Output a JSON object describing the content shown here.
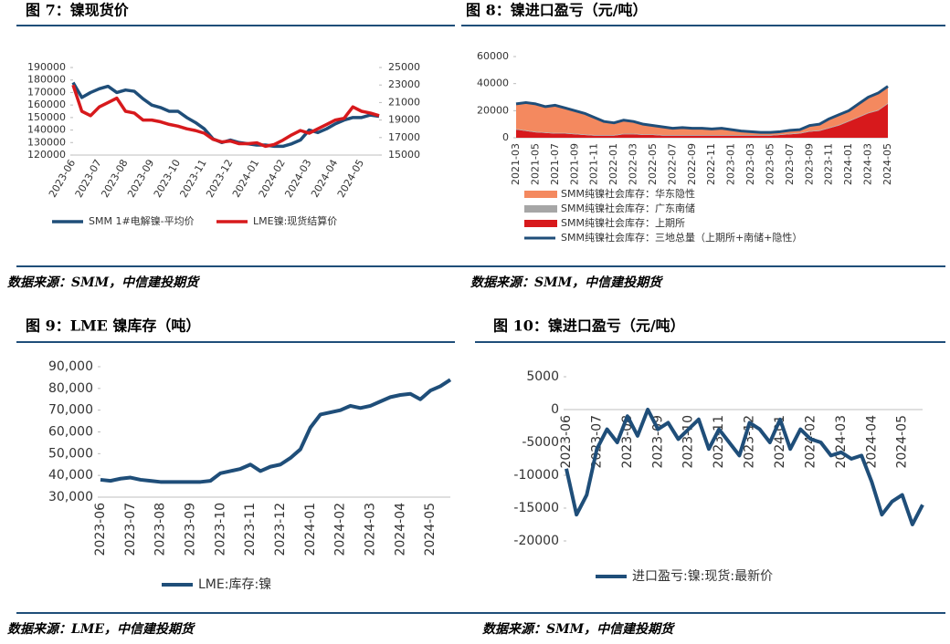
{
  "chart_data": [
    {
      "type": "line",
      "title": "图 7：镍现货价",
      "source": "数据来源：SMM，中信建投期货",
      "categories": [
        "2023-06",
        null,
        null,
        "2023-07",
        null,
        null,
        "2023-08",
        null,
        null,
        "2023-09",
        null,
        null,
        "2023-10",
        null,
        null,
        "2023-11",
        null,
        null,
        "2023-12",
        null,
        null,
        "2024-01",
        null,
        null,
        "2024-02",
        null,
        null,
        "2024-03",
        null,
        null,
        "2024-04",
        null,
        null,
        "2024-05",
        null,
        null
      ],
      "ylim": [
        120000,
        190000
      ],
      "yticks": [
        120000,
        130000,
        140000,
        150000,
        160000,
        170000,
        180000,
        190000
      ],
      "y2lim": [
        15000,
        25000
      ],
      "y2ticks": [
        15000,
        17000,
        19000,
        21000,
        23000,
        25000
      ],
      "series": [
        {
          "name": "SMM 1#电解镍-平均价",
          "color": "#1f4e79",
          "values": [
            178000,
            166000,
            170000,
            173000,
            175000,
            170000,
            172000,
            171000,
            165000,
            160000,
            158000,
            155000,
            155000,
            150000,
            146000,
            141000,
            133000,
            130000,
            132000,
            130000,
            129000,
            128000,
            128000,
            127000,
            127000,
            129000,
            132000,
            140000,
            138000,
            141000,
            145000,
            148000,
            150000,
            150000,
            152000,
            151000
          ]
        },
        {
          "name": "LME镍:现货结算价",
          "color": "#d7191c",
          "axis": "y2",
          "values": [
            23000,
            20000,
            19500,
            20500,
            21000,
            21500,
            20000,
            19800,
            19000,
            19000,
            18800,
            18500,
            18300,
            18000,
            17800,
            17500,
            16800,
            16500,
            16600,
            16300,
            16300,
            16400,
            16000,
            16200,
            16700,
            17300,
            17800,
            17500,
            18000,
            18500,
            19000,
            19200,
            20500,
            20000,
            19800,
            19500
          ]
        }
      ]
    },
    {
      "type": "area",
      "title": "图 8：镍进口盈亏（元/吨）",
      "source": "数据来源：SMM，中信建投期货",
      "categories": [
        "2021-03",
        null,
        "2021-05",
        null,
        "2021-07",
        null,
        "2021-09",
        null,
        "2021-11",
        null,
        "2022-01",
        null,
        "2022-03",
        null,
        "2022-05",
        null,
        "2022-07",
        null,
        "2022-09",
        null,
        "2022-11",
        null,
        "2023-01",
        null,
        "2023-03",
        null,
        "2023-05",
        null,
        "2023-07",
        null,
        "2023-09",
        null,
        "2023-11",
        null,
        "2024-01",
        null,
        "2024-03",
        null,
        "2024-05"
      ],
      "ylim": [
        0,
        60000
      ],
      "yticks": [
        0,
        20000,
        40000,
        60000
      ],
      "series": [
        {
          "name": "SMM纯镍社会库存：华东隐性",
          "color": "#f4895f",
          "kind": "area",
          "values": [
            18500,
            20500,
            20500,
            19000,
            20500,
            18500,
            17000,
            15500,
            13000,
            10000,
            9000,
            10000,
            9000,
            7500,
            6500,
            6000,
            5000,
            5500,
            5000,
            5000,
            4500,
            5000,
            4000,
            3000,
            2500,
            2000,
            2000,
            2000,
            2500,
            2500,
            4000,
            4500,
            6500,
            7500,
            7500,
            9500,
            11500,
            12500,
            12500
          ]
        },
        {
          "name": "SMM纯镍社会库存：广东南储",
          "color": "#a6a6a6",
          "kind": "area",
          "values": [
            500,
            500,
            500,
            500,
            500,
            500,
            500,
            500,
            500,
            500,
            500,
            500,
            500,
            500,
            500,
            500,
            500,
            500,
            500,
            500,
            500,
            500,
            500,
            500,
            500,
            500,
            500,
            500,
            500,
            500,
            500,
            500,
            500,
            500,
            500,
            500,
            500,
            500,
            500
          ]
        },
        {
          "name": "SMM纯镍社会库存：上期所",
          "color": "#d7191c",
          "kind": "area",
          "values": [
            6000,
            5000,
            4000,
            3500,
            3000,
            3000,
            2500,
            2000,
            1500,
            1500,
            1500,
            2500,
            2500,
            2000,
            2000,
            1500,
            1500,
            1500,
            1500,
            1500,
            1500,
            1500,
            1500,
            1500,
            1500,
            1500,
            1500,
            2000,
            2500,
            3000,
            4500,
            5000,
            7000,
            9000,
            12000,
            15000,
            18000,
            20000,
            25000
          ]
        },
        {
          "name": "SMM纯镍社会库存：三地总量（上期所+南储+隐性）",
          "color": "#1f4e79",
          "kind": "line",
          "values": [
            25000,
            26000,
            25000,
            23000,
            24000,
            22000,
            20000,
            18000,
            15000,
            12000,
            11000,
            13000,
            12000,
            10000,
            9000,
            8000,
            7000,
            7500,
            7000,
            7000,
            6500,
            7000,
            6000,
            5000,
            4500,
            4000,
            4000,
            4500,
            5500,
            6000,
            9000,
            10000,
            14000,
            17000,
            20000,
            25000,
            30000,
            33000,
            38000
          ]
        }
      ]
    },
    {
      "type": "line",
      "title": "图 9：LME 镍库存（吨）",
      "source": "数据来源：LME，中信建投期货",
      "categories": [
        "2023-06",
        null,
        null,
        "2023-07",
        null,
        null,
        "2023-08",
        null,
        null,
        "2023-09",
        null,
        null,
        "2023-10",
        null,
        null,
        "2023-11",
        null,
        null,
        "2023-12",
        null,
        null,
        "2024-01",
        null,
        null,
        "2024-02",
        null,
        null,
        "2024-03",
        null,
        null,
        "2024-04",
        null,
        null,
        "2024-05",
        null,
        null
      ],
      "ylim": [
        30000,
        90000
      ],
      "yticks": [
        {
          "value": 30000,
          "label": "30,000"
        },
        {
          "value": 40000,
          "label": "40,000"
        },
        {
          "value": 50000,
          "label": "50,000"
        },
        {
          "value": 60000,
          "label": "60,000"
        },
        {
          "value": 70000,
          "label": "70,000"
        },
        {
          "value": 80000,
          "label": "80,000"
        },
        {
          "value": 90000,
          "label": "90,000"
        }
      ],
      "series": [
        {
          "name": "LME:库存:镍",
          "color": "#1f4e79",
          "values": [
            38000,
            37500,
            38500,
            39000,
            38000,
            37500,
            37000,
            37000,
            37000,
            37000,
            37000,
            37500,
            41000,
            42000,
            43000,
            45000,
            42000,
            44000,
            45000,
            48000,
            52000,
            62000,
            68000,
            69000,
            70000,
            72000,
            71000,
            72000,
            74000,
            76000,
            77000,
            77500,
            75000,
            79000,
            81000,
            84000
          ]
        }
      ]
    },
    {
      "type": "line",
      "title": "图 10：镍进口盈亏（元/吨）",
      "source": "数据来源：SMM，中信建投期货",
      "categories": [
        "2023-06",
        null,
        null,
        "2023-07",
        null,
        null,
        "2023-08",
        null,
        null,
        "2023-09",
        null,
        null,
        "2023-10",
        null,
        null,
        "2023-11",
        null,
        null,
        "2023-12",
        null,
        null,
        "2024-01",
        null,
        null,
        "2024-02",
        null,
        null,
        "2024-03",
        null,
        null,
        "2024-04",
        null,
        null,
        "2024-05",
        null,
        null
      ],
      "ylim": [
        -20000,
        5000
      ],
      "yticks": [
        -20000,
        -15000,
        -10000,
        -5000,
        0,
        5000
      ],
      "series": [
        {
          "name": "进口盈亏:镍:现货:最新价",
          "color": "#1f4e79",
          "values": [
            -9000,
            -16000,
            -13000,
            -6000,
            -3000,
            -5000,
            -1000,
            -4000,
            0,
            -3000,
            -2000,
            -4500,
            -3000,
            -1500,
            -6000,
            -3000,
            -5000,
            -7000,
            -2000,
            -3000,
            -5000,
            -1500,
            -6000,
            -3000,
            -4500,
            -5000,
            -7000,
            -6500,
            -7500,
            -7000,
            -11000,
            -16000,
            -14000,
            -13000,
            -17500,
            -14500
          ]
        }
      ]
    }
  ]
}
